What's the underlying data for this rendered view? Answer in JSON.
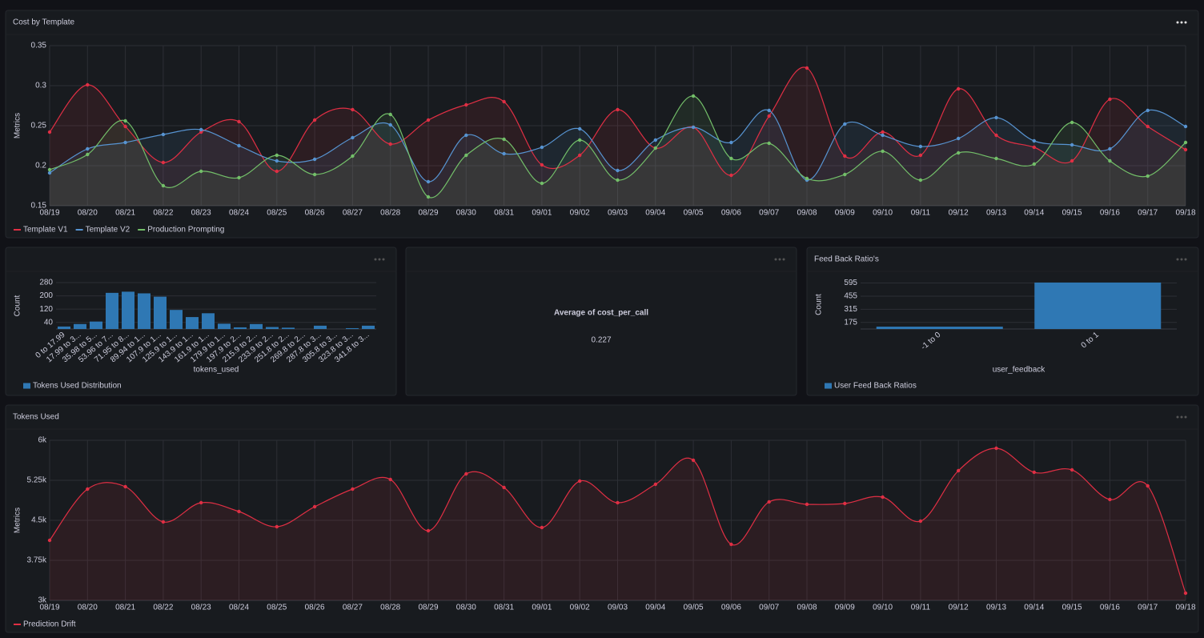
{
  "chart_data": [
    {
      "type": "line",
      "title": "Cost by Template",
      "ylabel": "Metrics",
      "categories": [
        "08/19",
        "08/20",
        "08/21",
        "08/22",
        "08/23",
        "08/24",
        "08/25",
        "08/26",
        "08/27",
        "08/28",
        "08/29",
        "08/30",
        "08/31",
        "09/01",
        "09/02",
        "09/03",
        "09/04",
        "09/05",
        "09/06",
        "09/07",
        "09/08",
        "09/09",
        "09/10",
        "09/11",
        "09/12",
        "09/13",
        "09/14",
        "09/15",
        "09/16",
        "09/17",
        "09/18"
      ],
      "series": [
        {
          "name": "Template V1",
          "color": "#e02f44",
          "values": [
            0.242,
            0.301,
            0.249,
            0.204,
            0.242,
            0.255,
            0.193,
            0.257,
            0.27,
            0.227,
            0.257,
            0.276,
            0.28,
            0.201,
            0.213,
            0.27,
            0.222,
            0.248,
            0.188,
            0.262,
            0.322,
            0.212,
            0.242,
            0.213,
            0.296,
            0.238,
            0.223,
            0.206,
            0.283,
            0.249,
            0.22
          ]
        },
        {
          "name": "Template V2",
          "color": "#5794d2",
          "values": [
            0.191,
            0.221,
            0.229,
            0.239,
            0.245,
            0.225,
            0.206,
            0.208,
            0.235,
            0.251,
            0.18,
            0.238,
            0.215,
            0.223,
            0.246,
            0.194,
            0.232,
            0.248,
            0.229,
            0.269,
            0.182,
            0.252,
            0.238,
            0.224,
            0.234,
            0.26,
            0.231,
            0.226,
            0.221,
            0.269,
            0.249
          ]
        },
        {
          "name": "Production Prompting",
          "color": "#73bf69",
          "values": [
            0.195,
            0.214,
            0.256,
            0.175,
            0.193,
            0.185,
            0.213,
            0.189,
            0.212,
            0.264,
            0.161,
            0.213,
            0.233,
            0.178,
            0.232,
            0.182,
            0.222,
            0.287,
            0.209,
            0.228,
            0.184,
            0.189,
            0.218,
            0.182,
            0.216,
            0.209,
            0.202,
            0.254,
            0.206,
            0.187,
            0.229
          ]
        }
      ],
      "ylim": [
        0.15,
        0.35
      ],
      "yticks": [
        0.15,
        0.2,
        0.25,
        0.3,
        0.35
      ],
      "grid": true
    },
    {
      "type": "bar",
      "xlabel": "tokens_used",
      "ylabel": "Count",
      "categories": [
        "0 to 17.99",
        "17.99 to 3...",
        "35.98 to 5...",
        "53.96 to 7...",
        "71.95 to 8...",
        "89.94 to 1...",
        "107.9 to 1...",
        "125.9 to 1...",
        "143.9 to 1...",
        "161.9 to 1...",
        "179.9 to 1...",
        "197.9 to 2...",
        "215.9 to 2...",
        "233.9 to 2...",
        "251.8 to 2...",
        "269.8 to 2...",
        "287.8 to 3...",
        "305.8 to 3...",
        "323.8 to 3...",
        "341.8 to 3..."
      ],
      "series": [
        {
          "name": "Tokens Used Distribution",
          "color": "#2f78b4",
          "values": [
            15,
            30,
            45,
            218,
            225,
            215,
            195,
            115,
            72,
            95,
            32,
            10,
            30,
            12,
            8,
            0,
            20,
            0,
            5,
            20
          ]
        }
      ],
      "ylim": [
        0,
        280
      ],
      "yticks": [
        40,
        120,
        200,
        280
      ],
      "grid": true
    },
    {
      "type": "stat",
      "label": "Average of cost_per_call",
      "value": 0.227
    },
    {
      "type": "bar",
      "title": "Feed Back Ratio's",
      "xlabel": "user_feedback",
      "ylabel": "Count",
      "categories": [
        "-1 to 0",
        "0 to 1"
      ],
      "series": [
        {
          "name": "User Feed Back Ratios",
          "color": "#2f78b4",
          "values": [
            130,
            600
          ]
        }
      ],
      "ylim": [
        105,
        625
      ],
      "yticks": [
        175,
        315,
        455,
        595
      ],
      "grid": true
    },
    {
      "type": "line",
      "title": "Tokens Used",
      "ylabel": "Metrics",
      "categories": [
        "08/19",
        "08/20",
        "08/21",
        "08/22",
        "08/23",
        "08/24",
        "08/25",
        "08/26",
        "08/27",
        "08/28",
        "08/29",
        "08/30",
        "08/31",
        "09/01",
        "09/02",
        "09/03",
        "09/04",
        "09/05",
        "09/06",
        "09/07",
        "09/08",
        "09/09",
        "09/10",
        "09/11",
        "09/12",
        "09/13",
        "09/14",
        "09/15",
        "09/16",
        "09/17",
        "09/18"
      ],
      "series": [
        {
          "name": "Prediction Drift",
          "color": "#e02f44",
          "values": [
            4125,
            5085,
            5130,
            4470,
            4830,
            4665,
            4380,
            4755,
            5085,
            5265,
            4305,
            5370,
            5115,
            4365,
            5235,
            4830,
            5175,
            5625,
            4050,
            4845,
            4800,
            4815,
            4935,
            4485,
            5430,
            5850,
            5400,
            5445,
            4890,
            5145,
            3135
          ]
        }
      ],
      "ylim": [
        3000,
        6000
      ],
      "yticks": [
        {
          "value": 3000,
          "label": "3k"
        },
        {
          "value": 3750,
          "label": "3.75k"
        },
        {
          "value": 4500,
          "label": "4.5k"
        },
        {
          "value": 5250,
          "label": "5.25k"
        },
        {
          "value": 6000,
          "label": "6k"
        }
      ],
      "grid": true
    }
  ]
}
